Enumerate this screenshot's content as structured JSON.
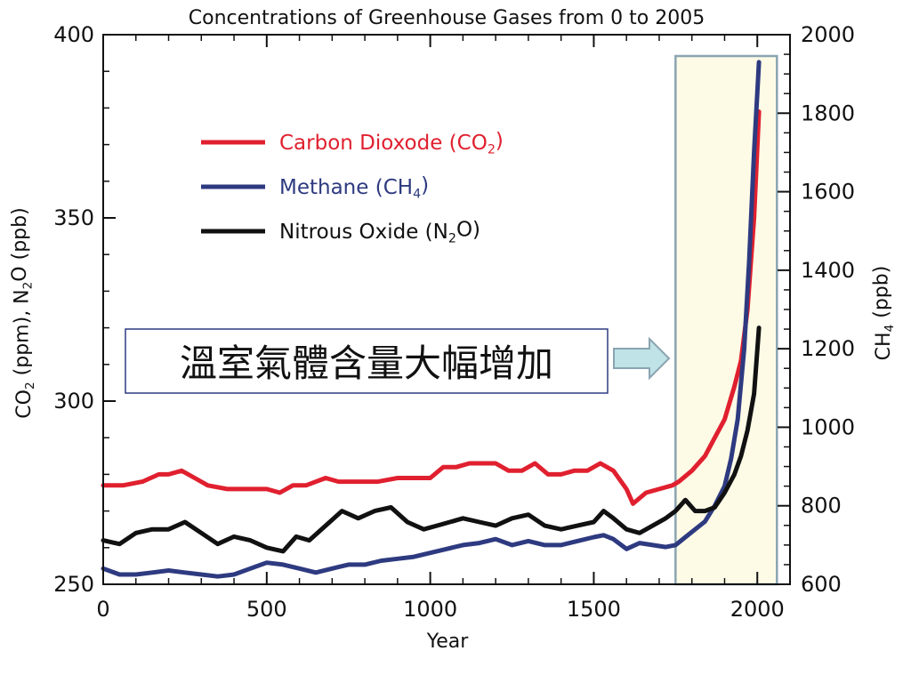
{
  "chart_data": {
    "type": "line",
    "title": "Concentrations of Greenhouse Gases from 0 to 2005",
    "xlabel": "Year",
    "ylabel_left_parts": [
      "CO",
      "2",
      " (ppm), N",
      "2",
      "O (ppb)"
    ],
    "ylabel_right_parts": [
      "CH",
      "4",
      " (ppb)"
    ],
    "xlim": [
      0,
      2100
    ],
    "ylim_left": [
      250,
      400
    ],
    "ylim_right": [
      600,
      2000
    ],
    "x_ticks": [
      0,
      500,
      1000,
      1500,
      2000
    ],
    "x_tick_labels": [
      "0",
      "500",
      "1000",
      "1500",
      "2000"
    ],
    "y_left_ticks": [
      250,
      300,
      350,
      400
    ],
    "y_left_tick_labels": [
      "250",
      "300",
      "350",
      "400"
    ],
    "y_right_ticks": [
      600,
      800,
      1000,
      1200,
      1400,
      1600,
      1800,
      2000
    ],
    "y_right_tick_labels": [
      "600",
      "800",
      "1000",
      "1200",
      "1400",
      "1600",
      "1800",
      "2000"
    ],
    "grid": false,
    "legend_position": "top-left",
    "highlight_range": [
      1750,
      2060
    ],
    "annotation": {
      "text": "溫室氣體含量大幅增加",
      "arrow_target": "highlighted period"
    },
    "series": [
      {
        "key": "co2",
        "legend_parts": [
          "Carbon Dioxode (CO",
          "2",
          ")"
        ],
        "axis": "left",
        "color": "#e0202f",
        "x": [
          0,
          60,
          120,
          170,
          200,
          240,
          280,
          320,
          380,
          440,
          500,
          540,
          580,
          620,
          680,
          720,
          780,
          840,
          900,
          960,
          1000,
          1040,
          1080,
          1120,
          1160,
          1200,
          1240,
          1280,
          1320,
          1360,
          1400,
          1440,
          1480,
          1520,
          1560,
          1600,
          1620,
          1660,
          1700,
          1740,
          1760,
          1800,
          1840,
          1870,
          1900,
          1930,
          1950,
          1970,
          1990,
          2005
        ],
        "values": [
          277,
          277,
          278,
          280,
          280,
          281,
          279,
          277,
          276,
          276,
          276,
          275,
          277,
          277,
          279,
          278,
          278,
          278,
          279,
          279,
          279,
          282,
          282,
          283,
          283,
          283,
          281,
          281,
          283,
          280,
          280,
          281,
          281,
          283,
          281,
          276,
          272,
          275,
          276,
          277,
          278,
          281,
          285,
          290,
          295,
          304,
          311,
          325,
          350,
          379
        ]
      },
      {
        "key": "ch4",
        "legend_parts": [
          "Methane (CH",
          "4",
          ")"
        ],
        "axis": "right",
        "color": "#2e3a80",
        "x": [
          0,
          50,
          100,
          150,
          200,
          250,
          300,
          350,
          400,
          450,
          500,
          550,
          600,
          650,
          700,
          750,
          800,
          850,
          900,
          950,
          1000,
          1050,
          1100,
          1150,
          1200,
          1250,
          1300,
          1350,
          1400,
          1450,
          1500,
          1530,
          1560,
          1600,
          1640,
          1680,
          1720,
          1750,
          1780,
          1810,
          1840,
          1870,
          1900,
          1920,
          1940,
          1960,
          1975,
          1990,
          2000,
          2005
        ],
        "values": [
          640,
          625,
          625,
          630,
          635,
          630,
          625,
          620,
          625,
          640,
          655,
          650,
          640,
          630,
          640,
          650,
          650,
          660,
          665,
          670,
          680,
          690,
          700,
          705,
          715,
          700,
          710,
          700,
          700,
          710,
          720,
          725,
          715,
          690,
          705,
          700,
          695,
          700,
          720,
          740,
          760,
          800,
          850,
          920,
          1020,
          1200,
          1420,
          1700,
          1850,
          1930
        ]
      },
      {
        "key": "n2o",
        "legend_parts": [
          "Nitrous Oxide (N",
          "2",
          "O)"
        ],
        "axis": "left",
        "color": "#111111",
        "x": [
          0,
          50,
          100,
          150,
          200,
          250,
          300,
          350,
          400,
          450,
          500,
          550,
          590,
          630,
          680,
          730,
          780,
          830,
          880,
          930,
          980,
          1020,
          1060,
          1100,
          1150,
          1200,
          1250,
          1300,
          1350,
          1400,
          1450,
          1500,
          1530,
          1560,
          1600,
          1640,
          1680,
          1720,
          1750,
          1780,
          1810,
          1840,
          1870,
          1900,
          1930,
          1950,
          1970,
          1990,
          2005
        ],
        "values": [
          262,
          261,
          264,
          265,
          265,
          267,
          264,
          261,
          263,
          262,
          260,
          259,
          263,
          262,
          266,
          270,
          268,
          270,
          271,
          267,
          265,
          266,
          267,
          268,
          267,
          266,
          268,
          269,
          266,
          265,
          266,
          267,
          270,
          268,
          265,
          264,
          266,
          268,
          270,
          273,
          270,
          270,
          271,
          275,
          280,
          285,
          292,
          302,
          320
        ]
      }
    ]
  }
}
